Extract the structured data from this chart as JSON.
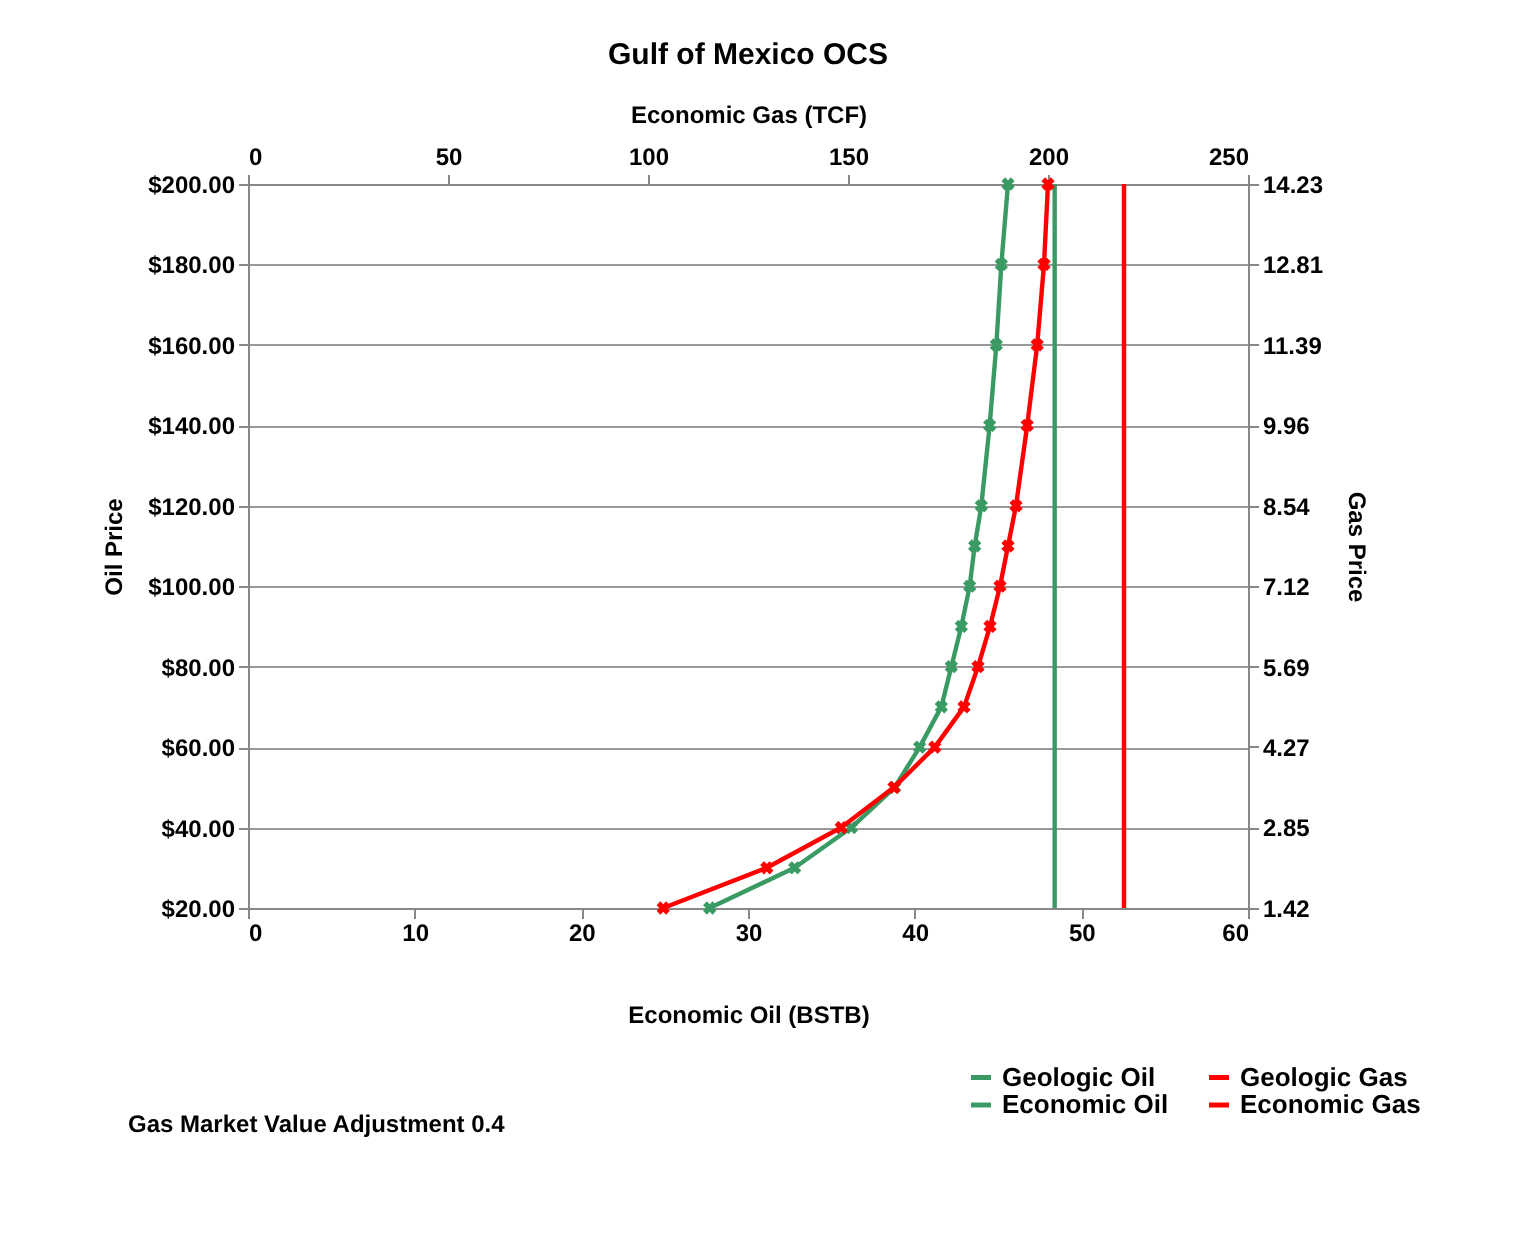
{
  "chart_data": {
    "type": "line",
    "title": "Gulf of Mexico OCS",
    "xlabel": "Economic Oil (BSTB)",
    "x2label": "Economic Gas (TCF)",
    "ylabel": "Oil Price",
    "y2label": "Gas Price",
    "xlim": [
      0,
      60
    ],
    "xticks": [
      0,
      10,
      20,
      30,
      40,
      50,
      60
    ],
    "x2lim": [
      0,
      250
    ],
    "x2ticks": [
      0,
      50,
      100,
      150,
      200,
      250
    ],
    "ylim": [
      20,
      200
    ],
    "yticks": [
      {
        "value": 20,
        "label": "$20.00"
      },
      {
        "value": 40,
        "label": "$40.00"
      },
      {
        "value": 60,
        "label": "$60.00"
      },
      {
        "value": 80,
        "label": "$80.00"
      },
      {
        "value": 100,
        "label": "$100.00"
      },
      {
        "value": 120,
        "label": "$120.00"
      },
      {
        "value": 140,
        "label": "$140.00"
      },
      {
        "value": 160,
        "label": "$160.00"
      },
      {
        "value": 180,
        "label": "$180.00"
      },
      {
        "value": 200,
        "label": "$200.00"
      }
    ],
    "y2lim": [
      1.42,
      14.23
    ],
    "y2ticks": [
      1.42,
      2.85,
      4.27,
      5.69,
      7.12,
      8.54,
      9.96,
      11.39,
      12.81,
      14.23
    ],
    "grid": "y",
    "legend": "bottom right",
    "line_style": "solid",
    "annotations": [
      "Gas Market Value Adjustment 0.4"
    ],
    "series": [
      {
        "name": "Geologic Oil",
        "color": "#3a9a64",
        "marker": "none",
        "x": [
          48.4,
          48.4
        ],
        "values": [
          20,
          200
        ]
      },
      {
        "name": "Economic Oil",
        "color": "#3a9a64",
        "marker": "cross",
        "x": [
          27.7,
          32.8,
          36.2,
          38.8,
          40.3,
          41.6,
          42.2,
          42.8,
          43.3,
          43.6,
          44.0,
          44.5,
          44.9,
          45.2,
          45.6
        ],
        "values": [
          20,
          30,
          40,
          50,
          60,
          70,
          80,
          90,
          100,
          110,
          120,
          140,
          160,
          180,
          200
        ]
      },
      {
        "name": "Geologic Gas",
        "color": "#ff0000",
        "marker": "none",
        "axis": "x2",
        "x": [
          219,
          219
        ],
        "values": [
          20,
          200
        ]
      },
      {
        "name": "Economic Gas",
        "color": "#ff0000",
        "marker": "cross",
        "axis": "x2",
        "x": [
          103.8,
          129.7,
          148.3,
          161.5,
          171.7,
          179,
          182.5,
          185.5,
          188,
          190,
          192,
          194.8,
          197.3,
          199,
          200
        ],
        "values": [
          20,
          30,
          40,
          50,
          60,
          70,
          80,
          90,
          100,
          110,
          120,
          140,
          160,
          180,
          200
        ]
      }
    ]
  }
}
